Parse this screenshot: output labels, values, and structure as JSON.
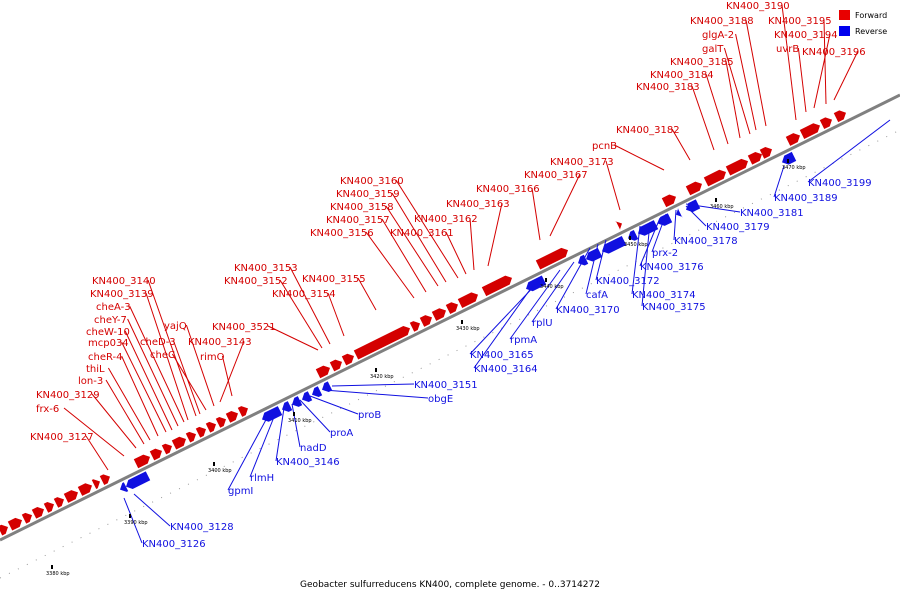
{
  "caption": "Geobacter sulfurreducens KN400, complete genome. - 0..3714272",
  "legend": [
    {
      "label": "Forward",
      "color": "#e80000"
    },
    {
      "label": "Reverse",
      "color": "#0000ee"
    }
  ],
  "colors": {
    "forward": "#d40000",
    "reverse": "#1010e0",
    "axis": "#808080"
  },
  "kbp_ticks": [
    "3380 kbp",
    "3390 kbp",
    "3400 kbp",
    "3410 kbp",
    "3420 kbp",
    "3430 kbp",
    "3440 kbp",
    "3450 kbp",
    "3460 kbp",
    "3470 kbp"
  ],
  "forward_labels": [
    "KN400_3127",
    "frx-6",
    "KN400_3129",
    "lon-3",
    "thiL",
    "cheR-4",
    "mcp034",
    "cheW-10",
    "cheY-7",
    "cheA-3",
    "KN400_3139",
    "KN400_3140",
    "cheD-3",
    "cheC",
    "yajQ",
    "KN400_3143",
    "rimO",
    "KN400_3521",
    "KN400_3152",
    "KN400_3153",
    "KN400_3154",
    "KN400_3155",
    "KN400_3156",
    "KN400_3157",
    "KN400_3158",
    "KN400_3159",
    "KN400_3160",
    "KN400_3161",
    "KN400_3162",
    "KN400_3163",
    "KN400_3166",
    "KN400_3167",
    "KN400_3173",
    "pcnB",
    "KN400_3182",
    "KN400_3183",
    "KN400_3184",
    "KN400_3185",
    "galT",
    "glgA-2",
    "KN400_3188",
    "KN400_3190",
    "uvrB",
    "KN400_3194",
    "KN400_3195",
    "KN400_3196"
  ],
  "reverse_labels": [
    "KN400_3126",
    "KN400_3128",
    "gpmI",
    "rlmH",
    "KN400_3146",
    "nadD",
    "proA",
    "proB",
    "obgE",
    "KN400_3151",
    "KN400_3164",
    "KN400_3165",
    "rpmA",
    "rplU",
    "KN400_3170",
    "cafA",
    "KN400_3172",
    "KN400_3174",
    "KN400_3175",
    "KN400_3176",
    "prx-2",
    "KN400_3178",
    "KN400_3179",
    "KN400_3181",
    "KN400_3189",
    "KN400_3199"
  ]
}
